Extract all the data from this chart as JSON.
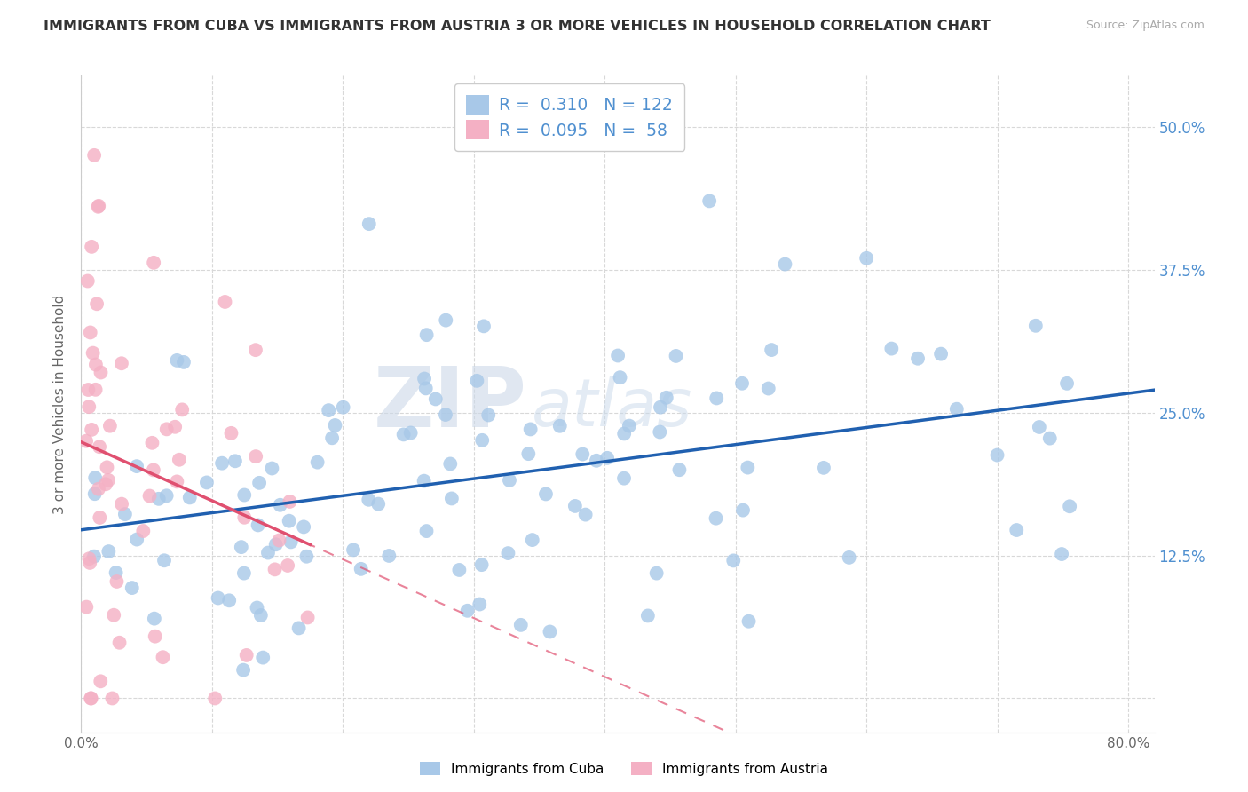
{
  "title": "IMMIGRANTS FROM CUBA VS IMMIGRANTS FROM AUSTRIA 3 OR MORE VEHICLES IN HOUSEHOLD CORRELATION CHART",
  "source": "Source: ZipAtlas.com",
  "ylabel": "3 or more Vehicles in Household",
  "xlim": [
    0.0,
    0.82
  ],
  "ylim": [
    -0.03,
    0.545
  ],
  "cuba_R": 0.31,
  "cuba_N": 122,
  "austria_R": 0.095,
  "austria_N": 58,
  "cuba_color": "#a8c8e8",
  "austria_color": "#f4b0c4",
  "cuba_line_color": "#2060b0",
  "austria_line_color": "#e05070",
  "watermark_zip": "ZIP",
  "watermark_atlas": "atlas",
  "bg_color": "#ffffff",
  "grid_color": "#d8d8d8",
  "title_color": "#333333",
  "axis_label_color": "#666666",
  "right_tick_color": "#5090d0",
  "source_color": "#aaaaaa",
  "legend_edge_color": "#cccccc"
}
